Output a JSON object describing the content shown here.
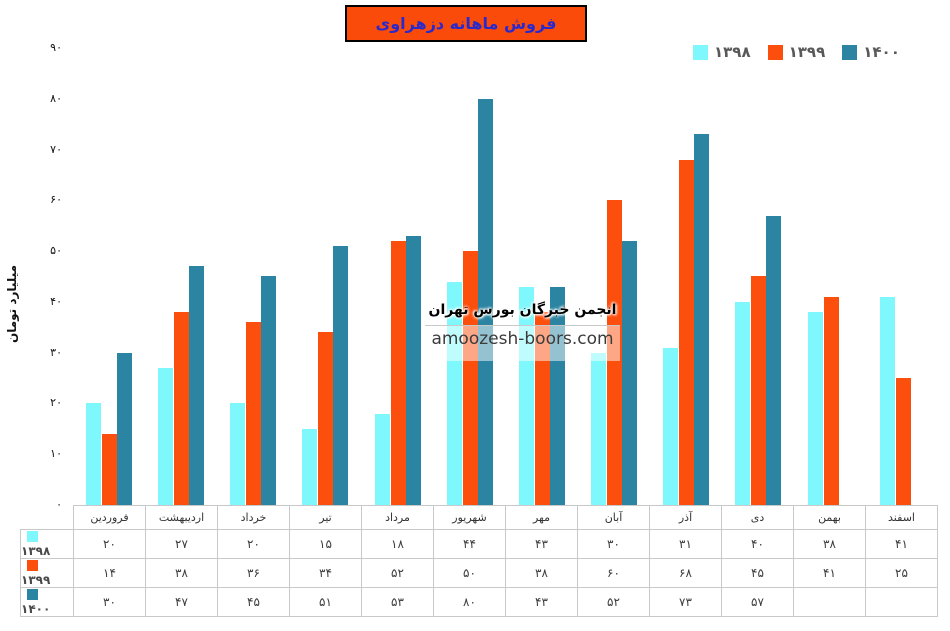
{
  "title": "فروش ماهانه دزهراوی",
  "watermark": {
    "line1": "انجمن خبرگان بورس تهران",
    "line2": "amoozesh-boors.com"
  },
  "colors": {
    "s1398": "#7EF8FD",
    "s1399": "#FC4E0C",
    "s1400": "#2B84A1",
    "title_bg": "#FB4B0B",
    "title_text": "#2929CC",
    "legend_text": "#595959",
    "table_border": "#C9C9C9"
  },
  "chart_data": {
    "type": "bar",
    "title": "فروش ماهانه دزهراوی",
    "xlabel": "",
    "ylabel": "میلیارد تومان",
    "ylim": [
      0,
      90
    ],
    "ytick_step": 10,
    "grid": false,
    "legend_position": "top-right",
    "digit_style": "persian",
    "categories": [
      "فروردین",
      "اردیبهشت",
      "خرداد",
      "تیر",
      "مرداد",
      "شهریور",
      "مهر",
      "آبان",
      "آذر",
      "دی",
      "بهمن",
      "اسفند"
    ],
    "series": [
      {
        "name": "۱۳۹۸",
        "color_key": "s1398",
        "values": [
          20,
          27,
          20,
          15,
          18,
          44,
          43,
          30,
          31,
          40,
          38,
          41
        ]
      },
      {
        "name": "۱۳۹۹",
        "color_key": "s1399",
        "values": [
          14,
          38,
          36,
          34,
          52,
          50,
          38,
          60,
          68,
          45,
          41,
          25
        ]
      },
      {
        "name": "۱۴۰۰",
        "color_key": "s1400",
        "values": [
          30,
          47,
          45,
          51,
          53,
          80,
          43,
          52,
          73,
          57,
          null,
          null
        ]
      }
    ]
  }
}
